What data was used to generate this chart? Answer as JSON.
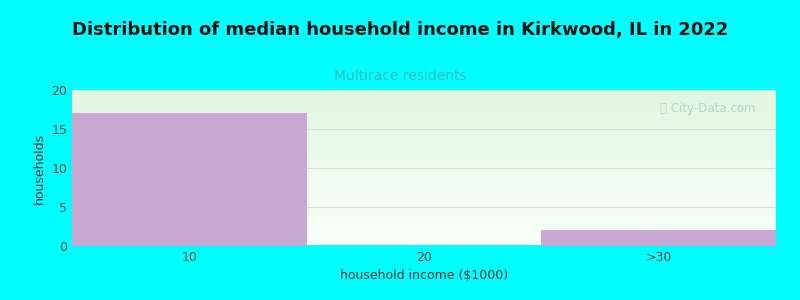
{
  "title": "Distribution of median household income in Kirkwood, IL in 2022",
  "subtitle": "Multirace residents",
  "xlabel": "household income ($1000)",
  "ylabel": "households",
  "background_color": "#00FFFF",
  "bar_color": "#c9a8d4",
  "categories": [
    "10",
    "20",
    ">30"
  ],
  "values": [
    17,
    0,
    2
  ],
  "ylim": [
    0,
    20
  ],
  "yticks": [
    0,
    5,
    10,
    15,
    20
  ],
  "xtick_labels": [
    "10",
    "20",
    ">30"
  ],
  "title_fontsize": 13,
  "subtitle_fontsize": 10,
  "subtitle_color": "#33BBBB",
  "axis_label_fontsize": 9,
  "watermark_text": "Ⓢ City-Data.com",
  "watermark_color": "#aacccc",
  "grid_color": "#dddddd"
}
